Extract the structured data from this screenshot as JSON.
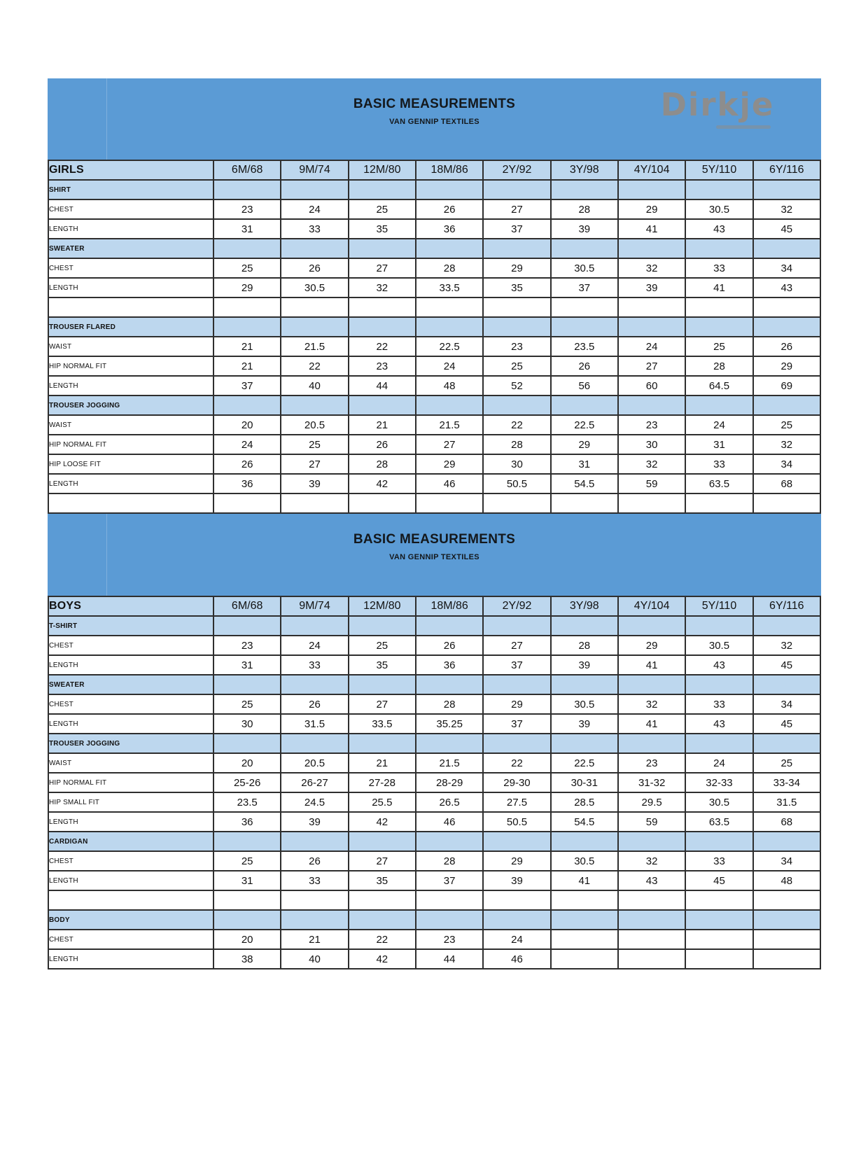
{
  "header": {
    "title": "BASIC MEASUREMENTS",
    "subtitle": "VAN GENNIP TEXTILES",
    "logo_text": "Dirkje"
  },
  "colors": {
    "header_blue": "#5b9bd5",
    "section_blue": "#bdd7ee",
    "logo_gray": "#8d8d8d",
    "grid_border": "#2e2e2e",
    "title_text": "#14181c"
  },
  "size_columns": [
    "6M/68",
    "9M/74",
    "12M/80",
    "18M/86",
    "2Y/92",
    "3Y/98",
    "4Y/104",
    "5Y/110",
    "6Y/116"
  ],
  "tables": [
    {
      "name": "GIRLS",
      "rows": [
        {
          "type": "section",
          "label": "SHIRT"
        },
        {
          "type": "data",
          "label": "CHEST",
          "values": [
            "23",
            "24",
            "25",
            "26",
            "27",
            "28",
            "29",
            "30.5",
            "32"
          ]
        },
        {
          "type": "data",
          "label": "LENGTH",
          "values": [
            "31",
            "33",
            "35",
            "36",
            "37",
            "39",
            "41",
            "43",
            "45"
          ]
        },
        {
          "type": "section",
          "label": "SWEATER"
        },
        {
          "type": "data",
          "label": "CHEST",
          "values": [
            "25",
            "26",
            "27",
            "28",
            "29",
            "30.5",
            "32",
            "33",
            "34"
          ]
        },
        {
          "type": "data",
          "label": "LENGTH",
          "values": [
            "29",
            "30.5",
            "32",
            "33.5",
            "35",
            "37",
            "39",
            "41",
            "43"
          ]
        },
        {
          "type": "blank"
        },
        {
          "type": "section",
          "label": "TROUSER FLARED"
        },
        {
          "type": "data",
          "label": "WAIST",
          "values": [
            "21",
            "21.5",
            "22",
            "22.5",
            "23",
            "23.5",
            "24",
            "25",
            "26"
          ]
        },
        {
          "type": "data",
          "label": "HIP NORMAL FIT",
          "values": [
            "21",
            "22",
            "23",
            "24",
            "25",
            "26",
            "27",
            "28",
            "29"
          ]
        },
        {
          "type": "data",
          "label": "LENGTH",
          "values": [
            "37",
            "40",
            "44",
            "48",
            "52",
            "56",
            "60",
            "64.5",
            "69"
          ]
        },
        {
          "type": "section",
          "label": "TROUSER JOGGING"
        },
        {
          "type": "data",
          "label": "WAIST",
          "values": [
            "20",
            "20.5",
            "21",
            "21.5",
            "22",
            "22.5",
            "23",
            "24",
            "25"
          ]
        },
        {
          "type": "data",
          "label": "HIP NORMAL FIT",
          "values": [
            "24",
            "25",
            "26",
            "27",
            "28",
            "29",
            "30",
            "31",
            "32"
          ]
        },
        {
          "type": "data",
          "label": "HIP LOOSE FIT",
          "values": [
            "26",
            "27",
            "28",
            "29",
            "30",
            "31",
            "32",
            "33",
            "34"
          ]
        },
        {
          "type": "data",
          "label": "LENGTH",
          "values": [
            "36",
            "39",
            "42",
            "46",
            "50.5",
            "54.5",
            "59",
            "63.5",
            "68"
          ]
        },
        {
          "type": "blank"
        }
      ]
    },
    {
      "name": "BOYS",
      "rows": [
        {
          "type": "section",
          "label": "T-SHIRT"
        },
        {
          "type": "data",
          "label": "CHEST",
          "values": [
            "23",
            "24",
            "25",
            "26",
            "27",
            "28",
            "29",
            "30.5",
            "32"
          ]
        },
        {
          "type": "data",
          "label": "LENGTH",
          "values": [
            "31",
            "33",
            "35",
            "36",
            "37",
            "39",
            "41",
            "43",
            "45"
          ]
        },
        {
          "type": "section",
          "label": "SWEATER"
        },
        {
          "type": "data",
          "label": "CHEST",
          "values": [
            "25",
            "26",
            "27",
            "28",
            "29",
            "30.5",
            "32",
            "33",
            "34"
          ]
        },
        {
          "type": "data",
          "label": "LENGTH",
          "values": [
            "30",
            "31.5",
            "33.5",
            "35.25",
            "37",
            "39",
            "41",
            "43",
            "45"
          ]
        },
        {
          "type": "section",
          "label": "TROUSER JOGGING"
        },
        {
          "type": "data",
          "label": "WAIST",
          "values": [
            "20",
            "20.5",
            "21",
            "21.5",
            "22",
            "22.5",
            "23",
            "24",
            "25"
          ]
        },
        {
          "type": "data",
          "label": "HIP NORMAL FIT",
          "values": [
            "25-26",
            "26-27",
            "27-28",
            "28-29",
            "29-30",
            "30-31",
            "31-32",
            "32-33",
            "33-34"
          ]
        },
        {
          "type": "data",
          "label": "HIP SMALL FIT",
          "values": [
            "23.5",
            "24.5",
            "25.5",
            "26.5",
            "27.5",
            "28.5",
            "29.5",
            "30.5",
            "31.5"
          ]
        },
        {
          "type": "data",
          "label": "LENGTH",
          "values": [
            "36",
            "39",
            "42",
            "46",
            "50.5",
            "54.5",
            "59",
            "63.5",
            "68"
          ]
        },
        {
          "type": "section",
          "label": "CARDIGAN"
        },
        {
          "type": "data",
          "label": "CHEST",
          "values": [
            "25",
            "26",
            "27",
            "28",
            "29",
            "30.5",
            "32",
            "33",
            "34"
          ]
        },
        {
          "type": "data",
          "label": "LENGTH",
          "values": [
            "31",
            "33",
            "35",
            "37",
            "39",
            "41",
            "43",
            "45",
            "48"
          ]
        },
        {
          "type": "blank"
        },
        {
          "type": "section",
          "label": "BODY"
        },
        {
          "type": "data",
          "label": "CHEST",
          "values": [
            "20",
            "21",
            "22",
            "23",
            "24",
            "",
            "",
            "",
            ""
          ]
        },
        {
          "type": "data",
          "label": "LENGTH",
          "values": [
            "38",
            "40",
            "42",
            "44",
            "46",
            "",
            "",
            "",
            ""
          ]
        }
      ]
    }
  ]
}
